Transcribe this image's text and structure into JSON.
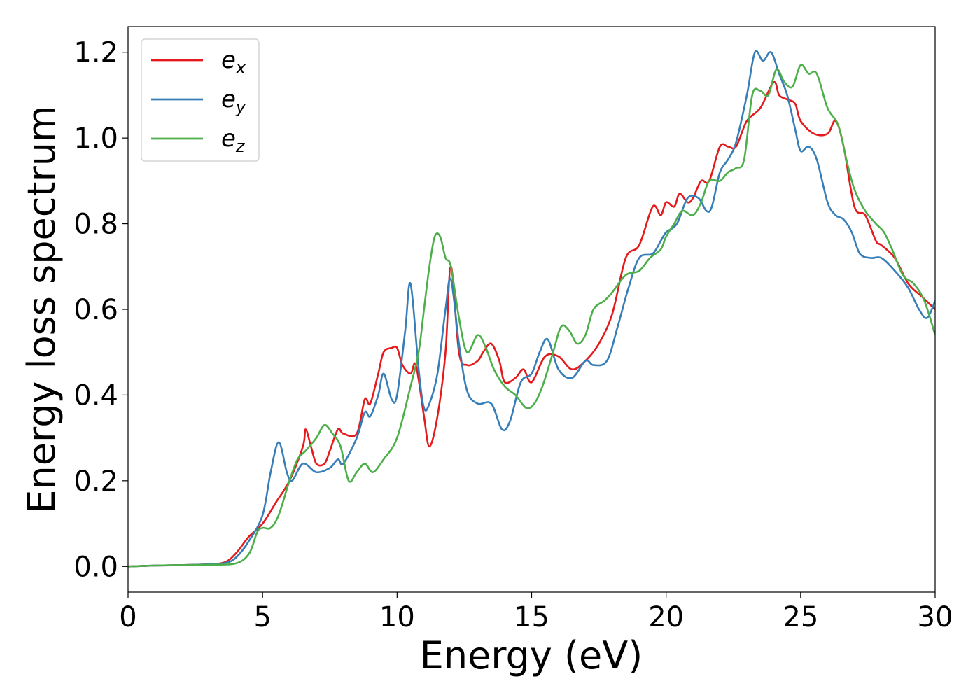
{
  "chart_data": {
    "type": "line",
    "xlabel": "Energy (eV)",
    "ylabel": "Energy loss spectrum",
    "xlim": [
      0,
      30
    ],
    "ylim": [
      -0.06,
      1.26
    ],
    "xticks": [
      0,
      5,
      10,
      15,
      20,
      25,
      30
    ],
    "xtick_labels": [
      "0",
      "5",
      "10",
      "15",
      "20",
      "25",
      "30"
    ],
    "yticks": [
      0.0,
      0.2,
      0.4,
      0.6,
      0.8,
      1.0,
      1.2
    ],
    "ytick_labels": [
      "0.0",
      "0.2",
      "0.4",
      "0.6",
      "0.8",
      "1.0",
      "1.2"
    ],
    "grid": false,
    "legend_position": "top-left",
    "series": [
      {
        "name_main": "e",
        "name_sub": "x",
        "color": "#e41a1c",
        "x": [
          0,
          1,
          2,
          3,
          3.6,
          4,
          4.5,
          5,
          5.5,
          6,
          6.5,
          6.6,
          6.8,
          7,
          7.3,
          7.5,
          7.8,
          8,
          8.5,
          8.8,
          9,
          9.3,
          9.5,
          9.8,
          10,
          10.2,
          10.5,
          10.7,
          11,
          11.2,
          11.5,
          11.8,
          12,
          12.3,
          12.6,
          13,
          13.2,
          13.5,
          13.8,
          14,
          14.4,
          14.7,
          15,
          15.5,
          16,
          16.5,
          17,
          17.5,
          18,
          18.5,
          19,
          19.5,
          19.8,
          20,
          20.3,
          20.5,
          20.8,
          21,
          21.3,
          21.6,
          22,
          22.3,
          22.6,
          23,
          23.5,
          24,
          24.2,
          24.5,
          24.8,
          25,
          25.5,
          26,
          26.3,
          26.6,
          27,
          27.4,
          27.8,
          28,
          28.5,
          29,
          29.5,
          30
        ],
        "y": [
          0,
          0.002,
          0.003,
          0.005,
          0.01,
          0.03,
          0.07,
          0.1,
          0.15,
          0.2,
          0.28,
          0.32,
          0.28,
          0.24,
          0.24,
          0.27,
          0.32,
          0.31,
          0.31,
          0.39,
          0.38,
          0.45,
          0.5,
          0.51,
          0.51,
          0.47,
          0.45,
          0.47,
          0.35,
          0.28,
          0.35,
          0.5,
          0.7,
          0.5,
          0.47,
          0.48,
          0.5,
          0.52,
          0.48,
          0.43,
          0.44,
          0.46,
          0.43,
          0.49,
          0.49,
          0.46,
          0.48,
          0.52,
          0.59,
          0.72,
          0.75,
          0.84,
          0.82,
          0.85,
          0.84,
          0.87,
          0.85,
          0.86,
          0.9,
          0.9,
          0.98,
          0.98,
          0.98,
          1.04,
          1.07,
          1.13,
          1.1,
          1.09,
          1.08,
          1.04,
          1.01,
          1.01,
          1.04,
          0.98,
          0.84,
          0.82,
          0.76,
          0.75,
          0.72,
          0.66,
          0.63,
          0.6
        ]
      },
      {
        "name_main": "e",
        "name_sub": "y",
        "color": "#377eb8",
        "x": [
          0,
          1,
          2,
          3,
          3.6,
          4,
          4.5,
          5,
          5.3,
          5.6,
          5.9,
          6.1,
          6.5,
          7,
          7.5,
          7.8,
          8,
          8.5,
          8.8,
          9,
          9.3,
          9.5,
          9.8,
          10,
          10.3,
          10.5,
          10.8,
          11,
          11.2,
          11.5,
          11.8,
          12,
          12.3,
          12.6,
          13,
          13.5,
          13.9,
          14.2,
          14.6,
          15,
          15.3,
          15.6,
          16,
          16.5,
          17,
          17.3,
          17.8,
          18.2,
          18.6,
          19,
          19.5,
          19.8,
          20,
          20.4,
          20.8,
          21.2,
          21.5,
          21.7,
          22,
          22.3,
          22.6,
          23,
          23.3,
          23.6,
          23.9,
          24.2,
          24.5,
          24.8,
          25,
          25.3,
          25.6,
          26,
          26.3,
          26.6,
          26.9,
          27.2,
          27.6,
          28,
          28.5,
          29,
          29.4,
          29.7,
          30
        ],
        "y": [
          0,
          0.002,
          0.003,
          0.005,
          0.008,
          0.02,
          0.06,
          0.12,
          0.22,
          0.29,
          0.22,
          0.2,
          0.24,
          0.22,
          0.23,
          0.25,
          0.24,
          0.3,
          0.36,
          0.35,
          0.4,
          0.45,
          0.39,
          0.4,
          0.55,
          0.66,
          0.46,
          0.37,
          0.38,
          0.45,
          0.6,
          0.67,
          0.52,
          0.41,
          0.38,
          0.38,
          0.32,
          0.34,
          0.43,
          0.45,
          0.5,
          0.53,
          0.46,
          0.44,
          0.48,
          0.47,
          0.48,
          0.56,
          0.65,
          0.72,
          0.73,
          0.76,
          0.78,
          0.8,
          0.86,
          0.86,
          0.83,
          0.84,
          0.92,
          0.95,
          0.99,
          1.1,
          1.2,
          1.18,
          1.2,
          1.15,
          1.1,
          1.02,
          0.97,
          0.98,
          0.95,
          0.85,
          0.82,
          0.81,
          0.78,
          0.73,
          0.72,
          0.72,
          0.69,
          0.65,
          0.6,
          0.58,
          0.62
        ]
      },
      {
        "name_main": "e",
        "name_sub": "z",
        "color": "#4daf4a",
        "x": [
          0,
          1,
          2,
          3,
          4,
          4.5,
          4.8,
          5,
          5.3,
          5.6,
          6,
          6.3,
          6.6,
          7,
          7.3,
          7.6,
          7.9,
          8.2,
          8.5,
          8.8,
          9.1,
          9.5,
          10,
          10.5,
          10.8,
          11,
          11.2,
          11.4,
          11.6,
          11.8,
          12,
          12.3,
          12.6,
          13,
          13.3,
          13.6,
          14,
          14.4,
          14.8,
          15.1,
          15.4,
          15.8,
          16.1,
          16.4,
          16.7,
          17,
          17.3,
          17.7,
          18,
          18.5,
          19,
          19.4,
          19.8,
          20,
          20.3,
          20.6,
          21,
          21.3,
          21.6,
          22,
          22.3,
          22.6,
          22.9,
          23.2,
          23.5,
          23.8,
          24.1,
          24.4,
          24.7,
          25,
          25.3,
          25.6,
          26,
          26.4,
          26.7,
          27,
          27.4,
          27.8,
          28.1,
          28.4,
          28.8,
          29.2,
          29.6,
          30
        ],
        "y": [
          0,
          0.002,
          0.003,
          0.004,
          0.007,
          0.03,
          0.08,
          0.09,
          0.09,
          0.12,
          0.2,
          0.25,
          0.27,
          0.3,
          0.33,
          0.31,
          0.28,
          0.2,
          0.22,
          0.24,
          0.22,
          0.25,
          0.3,
          0.42,
          0.5,
          0.6,
          0.7,
          0.77,
          0.77,
          0.72,
          0.7,
          0.58,
          0.5,
          0.54,
          0.51,
          0.46,
          0.42,
          0.4,
          0.37,
          0.38,
          0.42,
          0.5,
          0.56,
          0.55,
          0.52,
          0.54,
          0.6,
          0.62,
          0.64,
          0.68,
          0.69,
          0.72,
          0.74,
          0.77,
          0.8,
          0.83,
          0.82,
          0.85,
          0.9,
          0.9,
          0.92,
          0.93,
          0.95,
          1.1,
          1.11,
          1.1,
          1.16,
          1.13,
          1.12,
          1.17,
          1.15,
          1.15,
          1.07,
          1.03,
          0.95,
          0.88,
          0.83,
          0.8,
          0.78,
          0.74,
          0.68,
          0.66,
          0.62,
          0.54
        ]
      }
    ]
  }
}
